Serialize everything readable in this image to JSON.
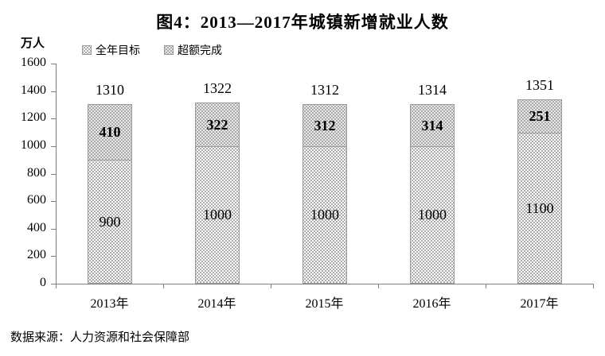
{
  "title": "图4：2013—2017年城镇新增就业人数",
  "unit_label": "万人",
  "legend": [
    {
      "label": "全年目标",
      "swatch": "light-dot-pattern"
    },
    {
      "label": "超额完成",
      "swatch": "dark-dot-pattern"
    }
  ],
  "source": "数据来源：人力资源和社会保障部",
  "colors": {
    "target_fill": "#ffffff",
    "target_dot": "#8f8f8f",
    "excess_fill": "#a9a9a9",
    "excess_dot": "#ffffff",
    "axis": "#808080",
    "text": "#000000"
  },
  "chart_data": {
    "type": "bar",
    "stacked": true,
    "title": "图4：2013—2017年城镇新增就业人数",
    "ylabel": "万人",
    "xlabel": "",
    "categories": [
      "2013年",
      "2014年",
      "2015年",
      "2016年",
      "2017年"
    ],
    "series": [
      {
        "name": "全年目标",
        "values": [
          900,
          1000,
          1000,
          1000,
          1100
        ]
      },
      {
        "name": "超额完成",
        "values": [
          410,
          322,
          312,
          314,
          251
        ]
      }
    ],
    "totals": [
      1310,
      1322,
      1312,
      1314,
      1351
    ],
    "ylim": [
      0,
      1600
    ],
    "yticks": [
      0,
      200,
      400,
      600,
      800,
      1000,
      1200,
      1400,
      1600
    ],
    "grid": false,
    "legend_position": "top-left",
    "data_labels": "inside-center-and-total-above"
  }
}
